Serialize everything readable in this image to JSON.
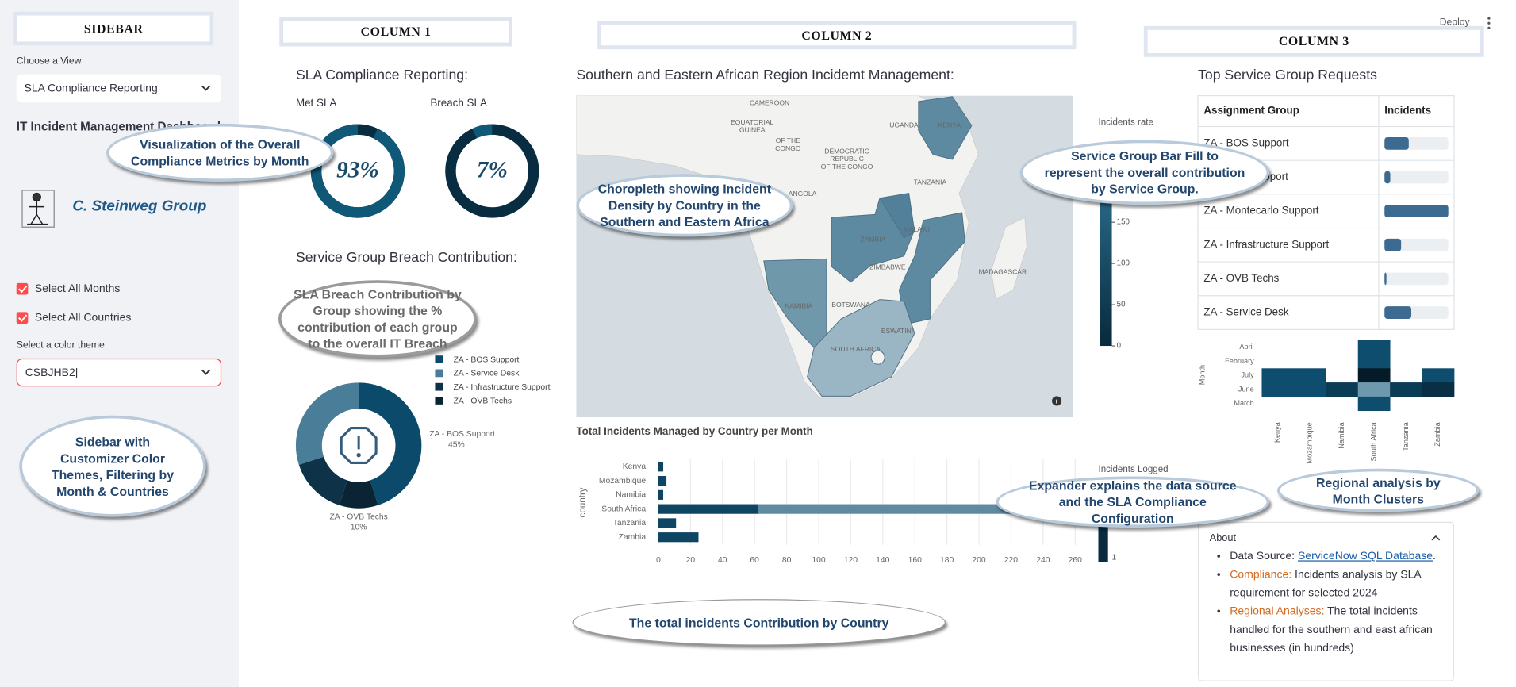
{
  "annotations": {
    "column_headers": [
      "SIDEBAR",
      "COLUMN 1",
      "COLUMN 2",
      "COLUMN 3"
    ],
    "callouts": [
      "Visualization of the Overall Compliance Metrics by Month",
      "SLA Breach Contribution by Group showing the % contribution of each group to the overall IT Breach",
      "Sidebar with Customizer Color Themes, Filtering by Month & Countries",
      "Choropleth showing Incident Density by Country in the Southern and Eastern Africa",
      "Service Group Bar Fill to represent the overall contribution by Service Group.",
      "Expander explains the data source and the SLA Compliance Configuration",
      "The total incidents Contribution by Country",
      "Regional analysis by Month Clusters"
    ]
  },
  "toolbar": {
    "deploy": "Deploy"
  },
  "sidebar": {
    "view_label": "Choose a View",
    "view_value": "SLA Compliance Reporting",
    "heading": "IT Incident Management Dashboard",
    "logo_text": "C. Steinweg Group",
    "checkboxes": [
      "Select All Months",
      "Select All Countries"
    ],
    "theme_label": "Select a color theme",
    "theme_value": "CSBJHB2"
  },
  "sla_compliance": {
    "title": "SLA Compliance Reporting:",
    "gauges": [
      {
        "label": "Met SLA",
        "value": 93,
        "value_label": "93%"
      },
      {
        "label": "Breach SLA",
        "value": 7,
        "value_label": "7%"
      }
    ]
  },
  "breach_contribution": {
    "title": "Service Group Breach Contribution:",
    "slices": [
      {
        "name": "ZA - BOS Support",
        "value": 45,
        "value_label": "45%",
        "color": "#0b4a6b"
      },
      {
        "name": "ZA - Service Desk",
        "value": 30,
        "color": "#4a7e98"
      },
      {
        "name": "ZA - Infrastructure Support",
        "value": 15,
        "color": "#0e3247"
      },
      {
        "name": "ZA - OVB Techs",
        "value": 10,
        "value_label": "10%",
        "color": "#0a2433"
      }
    ]
  },
  "map": {
    "title": "Southern and Eastern African Region Incidemt Management:",
    "country_labels": [
      "CAMEROON",
      "EQUATORIAL",
      "GUINEA",
      "OF THE",
      "CONGO",
      "DEMOCRATIC",
      "REPUBLIC",
      "OF THE CONGO",
      "UGANDA",
      "KENYA",
      "TANZANIA",
      "ANGOLA",
      "MALAWI",
      "ZAMBIA",
      "ZIMBABWE",
      "NAMIBIA",
      "BOTSWANA",
      "MADAGASCAR",
      "SOUTH AFRICA",
      "ESWATINI"
    ],
    "colorbar": {
      "title": "Incidents rate",
      "lim": [
        0,
        191
      ],
      "ticks": [
        0,
        50,
        100,
        150
      ]
    }
  },
  "incidents_by_country": {
    "title": "Total Incidents Managed by Country per Month",
    "y_title": "country",
    "categories": [
      "Kenya",
      "Mozambique",
      "Namibia",
      "South Africa",
      "Tanzania",
      "Zambia"
    ],
    "series": [
      {
        "color": "#0d4563",
        "values": [
          3,
          5,
          3,
          62,
          11,
          25
        ]
      },
      {
        "color": "#5e8ba0",
        "values": [
          null,
          null,
          null,
          208,
          null,
          null
        ]
      }
    ],
    "xlim": [
      0,
      271
    ],
    "xticks": [
      0,
      20,
      40,
      60,
      80,
      100,
      120,
      140,
      160,
      180,
      200,
      220,
      240,
      260
    ],
    "colorbar": {
      "title": "Incidents Logged",
      "ticks": [
        1
      ]
    }
  },
  "service_groups": {
    "title": "Top Service Group Requests",
    "columns": [
      "Assignment Group",
      "Incidents"
    ],
    "incidents_lim": [
      0,
      100
    ],
    "rows": [
      {
        "group": "ZA - BOS Support",
        "incidents": 38
      },
      {
        "group": "ZA - CSB Support",
        "incidents": 9
      },
      {
        "group": "ZA - Montecarlo Support",
        "incidents": 100
      },
      {
        "group": "ZA - Infrastructure Support",
        "incidents": 26
      },
      {
        "group": "ZA - OVB Techs",
        "incidents": 3
      },
      {
        "group": "ZA - Service Desk",
        "incidents": 42
      }
    ]
  },
  "month_clusters": {
    "y_title": "Month",
    "months": [
      "April",
      "February",
      "July",
      "June",
      "March"
    ],
    "countries": [
      "Kenya",
      "Mozambique",
      "Namibia",
      "South Africa",
      "Tanzania",
      "Zambia"
    ],
    "zlim": [
      0,
      200
    ],
    "values": [
      [
        null,
        null,
        null,
        60,
        null,
        null
      ],
      [
        null,
        null,
        null,
        60,
        null,
        null
      ],
      [
        60,
        60,
        null,
        2,
        null,
        60
      ],
      [
        60,
        60,
        40,
        180,
        40,
        25
      ],
      [
        null,
        null,
        null,
        60,
        null,
        null
      ]
    ]
  },
  "about": {
    "title": "About",
    "items": [
      {
        "label": "Data Source:",
        "link": "ServiceNow SQL Database",
        "text": "."
      },
      {
        "label": "Compliance:",
        "text": "Incidents analysis by SLA requirement for selected 2024"
      },
      {
        "label": "Regional Analyses:",
        "text": "The total incidents handled for the southern and east african businesses (in hundreds)"
      }
    ]
  }
}
